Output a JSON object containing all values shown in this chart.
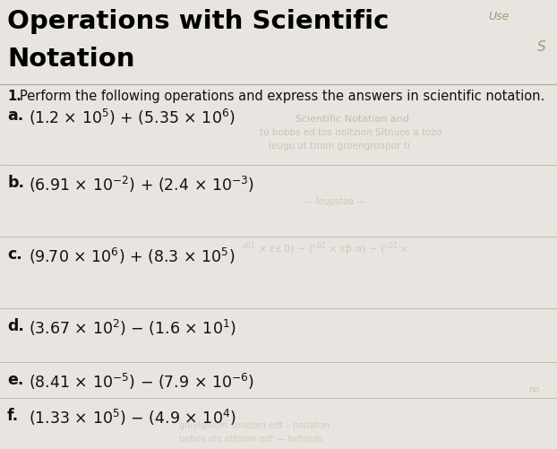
{
  "title_line1": "Operations with Scientific",
  "title_line2": "Notation",
  "bg_color": "#e8e4df",
  "right_label_use": "Use",
  "right_label_s": "S",
  "instruction_num": "1.",
  "instruction_text": " Perform the following operations and express the answers in scientific notation.",
  "problems": [
    {
      "label": "a.",
      "expr": "(1.2 × 10$^5$) + (5.35 × 10$^6$)"
    },
    {
      "label": "b.",
      "expr": "(6.91 × 10$^{-2}$) + (2.4 × 10$^{-3}$)"
    },
    {
      "label": "c.",
      "expr": "(9.70 × 10$^6$) + (8.3 × 10$^5$)"
    },
    {
      "label": "d.",
      "expr": "(3.67 × 10$^2$) − (1.6 × 10$^1$)"
    },
    {
      "label": "e.",
      "expr": "(8.41 × 10$^{-5}$) − (7.9 × 10$^{-6}$)"
    },
    {
      "label": "f.",
      "expr": "(1.33 × 10$^5$) − (4.9 × 10$^4$)"
    }
  ],
  "title_color": "#000000",
  "text_color": "#111111",
  "line_color": "#b0a898",
  "title_fontsize": 21,
  "label_fontsize": 12.5,
  "expr_fontsize": 12.5,
  "instruction_fontsize": 10.5,
  "use_fontsize": 9,
  "s_fontsize": 11,
  "bleedthrough_color": "#a0987a"
}
